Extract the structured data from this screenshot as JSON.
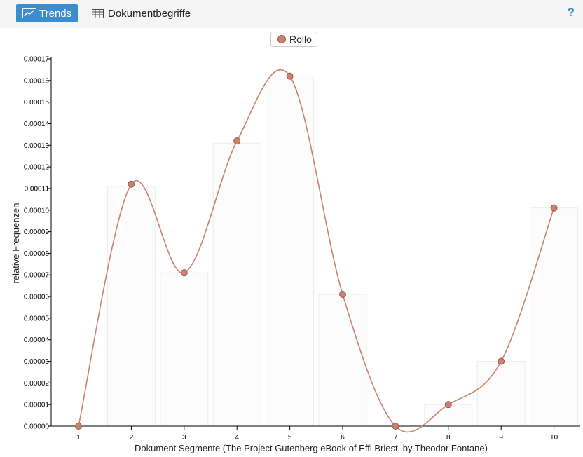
{
  "toolbar": {
    "trends_label": "Trends",
    "terms_label": "Dokumentbegriffe",
    "help_label": "?"
  },
  "legend": {
    "series_label": "Rollo"
  },
  "colors": {
    "accent": "#3b8dd0",
    "series": "#c8826f",
    "series_dark": "#9c5a48",
    "bar_fill": "#fcfcfc",
    "bar_stroke": "#ececec"
  },
  "chart_data": {
    "type": "line",
    "xlabel": "Dokument Segmente (The Project Gutenberg eBook of Effi Briest, by Theodor Fontane)",
    "ylabel": "relative Frequenzen",
    "x": [
      1,
      2,
      3,
      4,
      5,
      6,
      7,
      8,
      9,
      10
    ],
    "x_tick_labels": [
      "1",
      "2",
      "3",
      "4",
      "5",
      "6",
      "7",
      "8",
      "9",
      "10"
    ],
    "y_tick_labels": [
      "0.00000",
      "0.00001",
      "0.00002",
      "0.00003",
      "0.00004",
      "0.00005",
      "0.00006",
      "0.00007",
      "0.00008",
      "0.00009",
      "0.00010",
      "0.00011",
      "0.00012",
      "0.00013",
      "0.00014",
      "0.00015",
      "0.00016",
      "0.00017"
    ],
    "ylim": [
      0,
      0.00017
    ],
    "legend_position": "top-center",
    "series": [
      {
        "name": "Rollo",
        "values": [
          0.0,
          0.000112,
          7.1e-05,
          0.000132,
          0.000162,
          6.1e-05,
          0.0,
          1e-05,
          3e-05,
          0.000101
        ]
      }
    ],
    "bars": [
      0.0,
      0.000111,
      7.1e-05,
      0.000131,
      0.000162,
      6.1e-05,
      0.0,
      1e-05,
      3e-05,
      0.000101
    ]
  }
}
